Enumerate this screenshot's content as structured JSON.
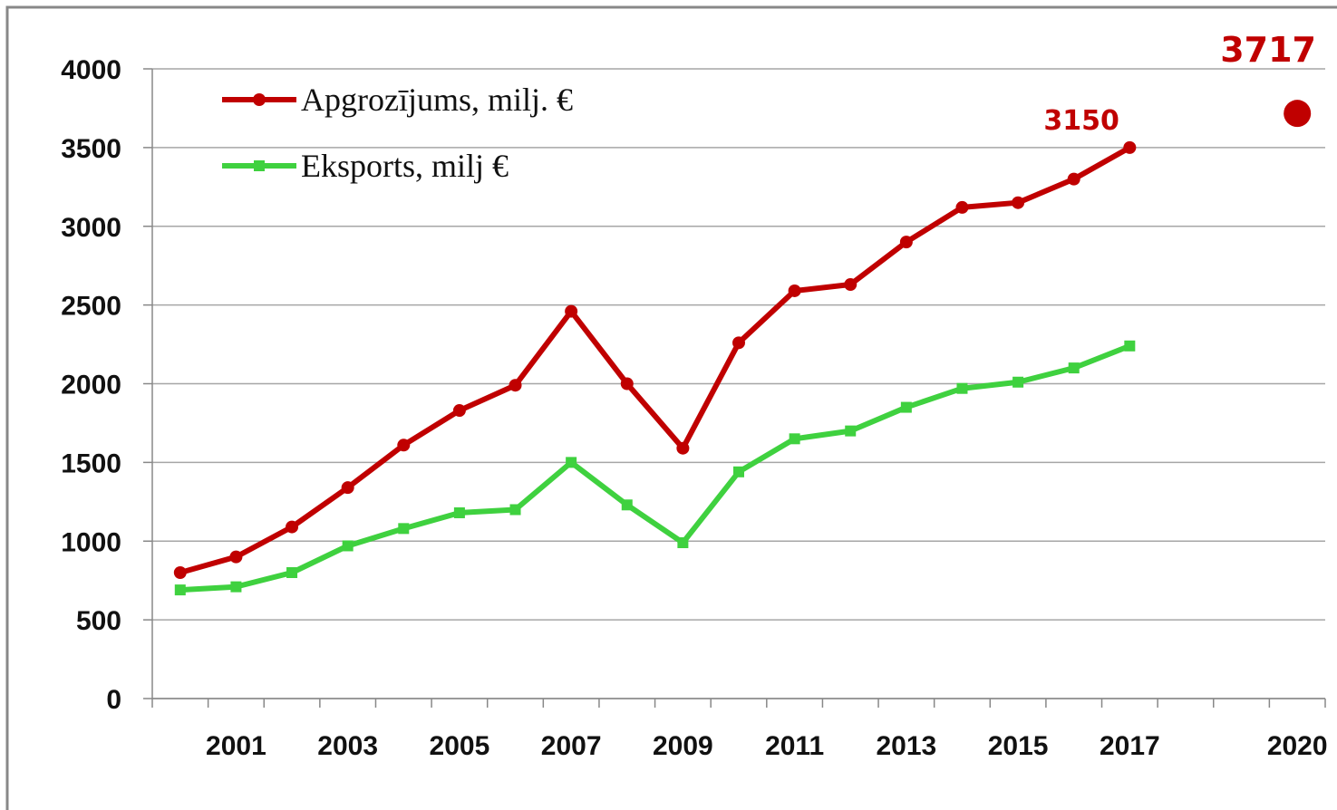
{
  "chart_data": {
    "type": "line",
    "categories": [
      null,
      "2001",
      null,
      "2003",
      null,
      "2005",
      null,
      "2007",
      null,
      "2009",
      null,
      "2011",
      null,
      "2013",
      null,
      "2015",
      null,
      "2017",
      null,
      null,
      "2020"
    ],
    "series": [
      {
        "name": "Apgrozījums, milj. €",
        "color": "#c00000",
        "marker": "circle",
        "values": [
          800,
          900,
          1090,
          1340,
          1610,
          1830,
          1990,
          2460,
          2000,
          1590,
          2260,
          2590,
          2630,
          2900,
          3120,
          3150,
          3300,
          3500,
          null,
          null,
          3717
        ]
      },
      {
        "name": "Eksports, milj €",
        "color": "#3fd13f",
        "marker": "square",
        "values": [
          690,
          710,
          800,
          970,
          1080,
          1180,
          1200,
          1500,
          1230,
          990,
          1440,
          1650,
          1700,
          1850,
          1970,
          2010,
          2100,
          2240,
          null,
          null,
          null
        ]
      }
    ],
    "ylim": [
      0,
      4000
    ],
    "yticks": [
      0,
      500,
      1000,
      1500,
      2000,
      2500,
      3000,
      3500,
      4000
    ],
    "grid": true,
    "legend": "top-left"
  }
}
